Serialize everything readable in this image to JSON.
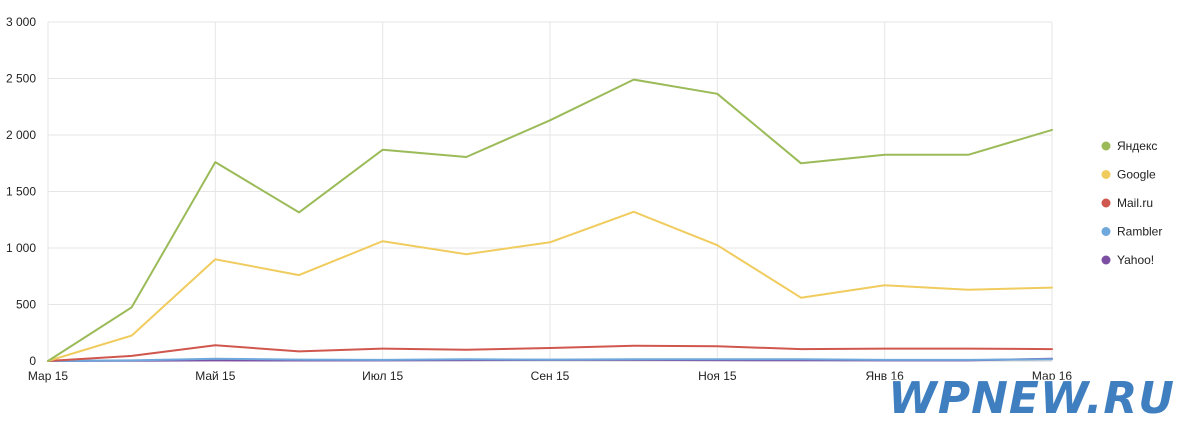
{
  "chart_data": {
    "type": "line",
    "title": "",
    "xlabel": "",
    "ylabel": "",
    "ylim": [
      0,
      3000
    ],
    "y_ticks": [
      0,
      500,
      1000,
      1500,
      2000,
      2500,
      3000
    ],
    "y_tick_labels": [
      "0",
      "500",
      "1 000",
      "1 500",
      "2 000",
      "2 500",
      "3 000"
    ],
    "x_ticks": [
      {
        "index": 0,
        "label": "Мар 15"
      },
      {
        "index": 2,
        "label": "Май 15"
      },
      {
        "index": 4,
        "label": "Июл 15"
      },
      {
        "index": 6,
        "label": "Сен 15"
      },
      {
        "index": 8,
        "label": "Ноя 15"
      },
      {
        "index": 10,
        "label": "Янв 16"
      },
      {
        "index": 12,
        "label": "Мар 16"
      }
    ],
    "x_count": 13,
    "grid": true,
    "legend_position": "right",
    "series": [
      {
        "name": "Яндекс",
        "color": "#9bbb59",
        "values": [
          0,
          475,
          1760,
          1315,
          1870,
          1805,
          2130,
          2490,
          2365,
          1750,
          1825,
          1825,
          2045
        ]
      },
      {
        "name": "Google",
        "color": "#f0cc5e",
        "values": [
          0,
          225,
          900,
          760,
          1060,
          945,
          1050,
          1320,
          1025,
          560,
          670,
          630,
          650
        ]
      },
      {
        "name": "Mail.ru",
        "color": "#d0574d",
        "values": [
          0,
          45,
          140,
          85,
          110,
          100,
          115,
          135,
          130,
          105,
          110,
          110,
          105
        ]
      },
      {
        "name": "Rambler",
        "color": "#6fa8dc",
        "values": [
          0,
          5,
          20,
          12,
          10,
          15,
          12,
          15,
          15,
          15,
          10,
          10,
          15
        ]
      },
      {
        "name": "Yahoo!",
        "color": "#7d4fa3",
        "values": [
          0,
          2,
          5,
          4,
          5,
          8,
          10,
          10,
          8,
          6,
          5,
          5,
          20
        ]
      }
    ]
  },
  "watermark": {
    "text": "WPNEW.RU",
    "fill": "#3f7fc0",
    "outline": "#ffffff"
  }
}
